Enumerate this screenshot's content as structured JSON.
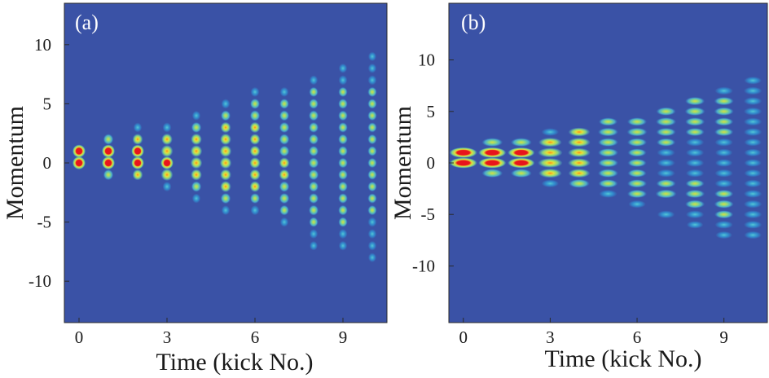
{
  "chart_data": [
    {
      "type": "heatmap",
      "panel_label": "(a)",
      "xlabel": "Time (kick No.)",
      "ylabel": "Momentum",
      "xlim": [
        -0.5,
        10.5
      ],
      "ylim": [
        -13.5,
        13.5
      ],
      "xticks": [
        0,
        3,
        6,
        9
      ],
      "yticks": [
        10,
        5,
        0,
        -5,
        -10
      ],
      "colormap": [
        "#3a52a6",
        "#2f9bd9",
        "#55d0d8",
        "#8fe07e",
        "#e3e23a",
        "#ff8a1a",
        "#e8141c"
      ],
      "peaks": [
        {
          "t": 0,
          "values": {
            "0": 1.0,
            "1": 1.0
          }
        },
        {
          "t": 1,
          "values": {
            "-1": 0.55,
            "0": 1.0,
            "1": 1.0,
            "2": 0.55
          }
        },
        {
          "t": 2,
          "values": {
            "-1": 0.6,
            "0": 0.95,
            "1": 0.95,
            "2": 0.6,
            "3": 0.3
          }
        },
        {
          "t": 3,
          "values": {
            "-2": 0.35,
            "-1": 0.85,
            "0": 0.95,
            "1": 0.85,
            "2": 0.7,
            "3": 0.35
          }
        },
        {
          "t": 4,
          "values": {
            "-3": 0.3,
            "-2": 0.55,
            "-1": 0.7,
            "0": 0.8,
            "1": 0.8,
            "2": 0.7,
            "3": 0.55,
            "4": 0.3
          }
        },
        {
          "t": 5,
          "values": {
            "-4": 0.3,
            "-3": 0.55,
            "-2": 0.65,
            "-1": 0.7,
            "0": 0.8,
            "1": 0.8,
            "2": 0.7,
            "3": 0.6,
            "4": 0.5,
            "5": 0.35
          }
        },
        {
          "t": 6,
          "values": {
            "-4": 0.35,
            "-3": 0.5,
            "-2": 0.6,
            "-1": 0.65,
            "0": 0.65,
            "1": 0.6,
            "2": 0.6,
            "3": 0.6,
            "4": 0.55,
            "5": 0.5,
            "6": 0.35
          }
        },
        {
          "t": 7,
          "values": {
            "-5": 0.3,
            "-4": 0.45,
            "-3": 0.55,
            "-2": 0.55,
            "-1": 0.6,
            "0": 0.6,
            "1": 0.55,
            "2": 0.55,
            "3": 0.55,
            "4": 0.5,
            "5": 0.45,
            "6": 0.35
          }
        },
        {
          "t": 8,
          "values": {
            "-7": 0.25,
            "-6": 0.3,
            "-5": 0.4,
            "-4": 0.5,
            "-3": 0.5,
            "-2": 0.5,
            "-1": 0.55,
            "0": 0.55,
            "1": 0.5,
            "2": 0.5,
            "3": 0.5,
            "4": 0.5,
            "5": 0.45,
            "6": 0.4,
            "7": 0.3
          }
        },
        {
          "t": 9,
          "values": {
            "-7": 0.3,
            "-6": 0.35,
            "-5": 0.4,
            "-4": 0.45,
            "-3": 0.45,
            "-2": 0.45,
            "-1": 0.45,
            "0": 0.45,
            "1": 0.45,
            "2": 0.45,
            "3": 0.45,
            "4": 0.45,
            "5": 0.45,
            "6": 0.4,
            "7": 0.35,
            "8": 0.3
          }
        },
        {
          "t": 10,
          "values": {
            "-8": 0.25,
            "-7": 0.3,
            "-6": 0.3,
            "-5": 0.35,
            "-4": 0.4,
            "-3": 0.4,
            "-2": 0.4,
            "-1": 0.4,
            "0": 0.4,
            "1": 0.4,
            "2": 0.4,
            "3": 0.4,
            "4": 0.4,
            "5": 0.4,
            "6": 0.4,
            "7": 0.35,
            "8": 0.3,
            "9": 0.25
          }
        }
      ]
    },
    {
      "type": "heatmap",
      "panel_label": "(b)",
      "xlabel": "Time (kick No.)",
      "ylabel": "Momentum",
      "xlim": [
        -0.5,
        10.5
      ],
      "ylim": [
        -15.5,
        15.5
      ],
      "xticks": [
        0,
        3,
        6,
        9
      ],
      "yticks": [
        10,
        5,
        0,
        -5,
        -10
      ],
      "colormap": [
        "#3a52a6",
        "#2f9bd9",
        "#55d0d8",
        "#8fe07e",
        "#e3e23a",
        "#ff8a1a",
        "#e8141c"
      ],
      "peaks": [
        {
          "t": 0,
          "values": {
            "0": 1.0,
            "1": 1.0
          }
        },
        {
          "t": 1,
          "values": {
            "-1": 0.55,
            "0": 1.0,
            "1": 1.0,
            "2": 0.55
          }
        },
        {
          "t": 2,
          "values": {
            "-1": 0.55,
            "0": 0.95,
            "1": 0.95,
            "2": 0.55
          }
        },
        {
          "t": 3,
          "values": {
            "-2": 0.3,
            "-1": 0.7,
            "0": 0.8,
            "1": 0.8,
            "2": 0.7,
            "3": 0.3
          }
        },
        {
          "t": 4,
          "values": {
            "-2": 0.55,
            "-1": 0.6,
            "0": 0.65,
            "1": 0.65,
            "2": 0.65,
            "3": 0.6
          }
        },
        {
          "t": 5,
          "values": {
            "-3": 0.35,
            "-2": 0.45,
            "-1": 0.5,
            "0": 0.5,
            "1": 0.5,
            "2": 0.5,
            "3": 0.5,
            "4": 0.4
          }
        },
        {
          "t": 6,
          "values": {
            "-4": 0.3,
            "-3": 0.45,
            "-2": 0.45,
            "-1": 0.4,
            "0": 0.4,
            "1": 0.4,
            "2": 0.45,
            "3": 0.5,
            "4": 0.45
          }
        },
        {
          "t": 7,
          "values": {
            "-5": 0.3,
            "-3": 0.55,
            "-2": 0.45,
            "-1": 0.35,
            "0": 0.35,
            "1": 0.35,
            "2": 0.4,
            "3": 0.45,
            "4": 0.5,
            "5": 0.45
          }
        },
        {
          "t": 8,
          "values": {
            "-6": 0.25,
            "-5": 0.35,
            "-4": 0.45,
            "-3": 0.45,
            "-2": 0.4,
            "-1": 0.35,
            "0": 0.35,
            "1": 0.35,
            "2": 0.35,
            "3": 0.4,
            "4": 0.45,
            "5": 0.5,
            "6": 0.45
          }
        },
        {
          "t": 9,
          "values": {
            "-7": 0.25,
            "-6": 0.35,
            "-5": 0.4,
            "-4": 0.45,
            "-3": 0.4,
            "-2": 0.35,
            "-1": 0.35,
            "0": 0.3,
            "1": 0.3,
            "2": 0.35,
            "3": 0.4,
            "4": 0.4,
            "5": 0.45,
            "6": 0.45,
            "7": 0.35
          }
        },
        {
          "t": 10,
          "values": {
            "-7": 0.3,
            "-6": 0.35,
            "-5": 0.35,
            "-4": 0.35,
            "-3": 0.35,
            "-2": 0.3,
            "-1": 0.3,
            "0": 0.3,
            "1": 0.3,
            "2": 0.3,
            "3": 0.35,
            "4": 0.35,
            "5": 0.35,
            "6": 0.35,
            "7": 0.35,
            "8": 0.3
          }
        }
      ]
    }
  ]
}
